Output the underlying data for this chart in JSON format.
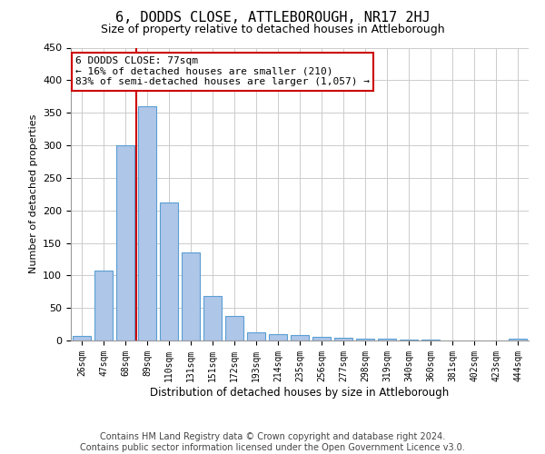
{
  "title": "6, DODDS CLOSE, ATTLEBOROUGH, NR17 2HJ",
  "subtitle": "Size of property relative to detached houses in Attleborough",
  "xlabel": "Distribution of detached houses by size in Attleborough",
  "ylabel": "Number of detached properties",
  "footer1": "Contains HM Land Registry data © Crown copyright and database right 2024.",
  "footer2": "Contains public sector information licensed under the Open Government Licence v3.0.",
  "categories": [
    "26sqm",
    "47sqm",
    "68sqm",
    "89sqm",
    "110sqm",
    "131sqm",
    "151sqm",
    "172sqm",
    "193sqm",
    "214sqm",
    "235sqm",
    "256sqm",
    "277sqm",
    "298sqm",
    "319sqm",
    "340sqm",
    "360sqm",
    "381sqm",
    "402sqm",
    "423sqm",
    "444sqm"
  ],
  "values": [
    7,
    108,
    300,
    360,
    212,
    135,
    68,
    38,
    13,
    10,
    9,
    6,
    4,
    3,
    3,
    2,
    2,
    0,
    0,
    0,
    3
  ],
  "bar_color": "#aec6e8",
  "bar_edge_color": "#5a9fd4",
  "ylim": [
    0,
    450
  ],
  "yticks": [
    0,
    50,
    100,
    150,
    200,
    250,
    300,
    350,
    400,
    450
  ],
  "vline_x_index": 2.5,
  "vline_color": "#cc0000",
  "annotation_line1": "6 DODDS CLOSE: 77sqm",
  "annotation_line2": "← 16% of detached houses are smaller (210)",
  "annotation_line3": "83% of semi-detached houses are larger (1,057) →",
  "annotation_box_color": "#cc0000",
  "title_fontsize": 11,
  "subtitle_fontsize": 9,
  "footer_fontsize": 7,
  "background_color": "#ffffff"
}
